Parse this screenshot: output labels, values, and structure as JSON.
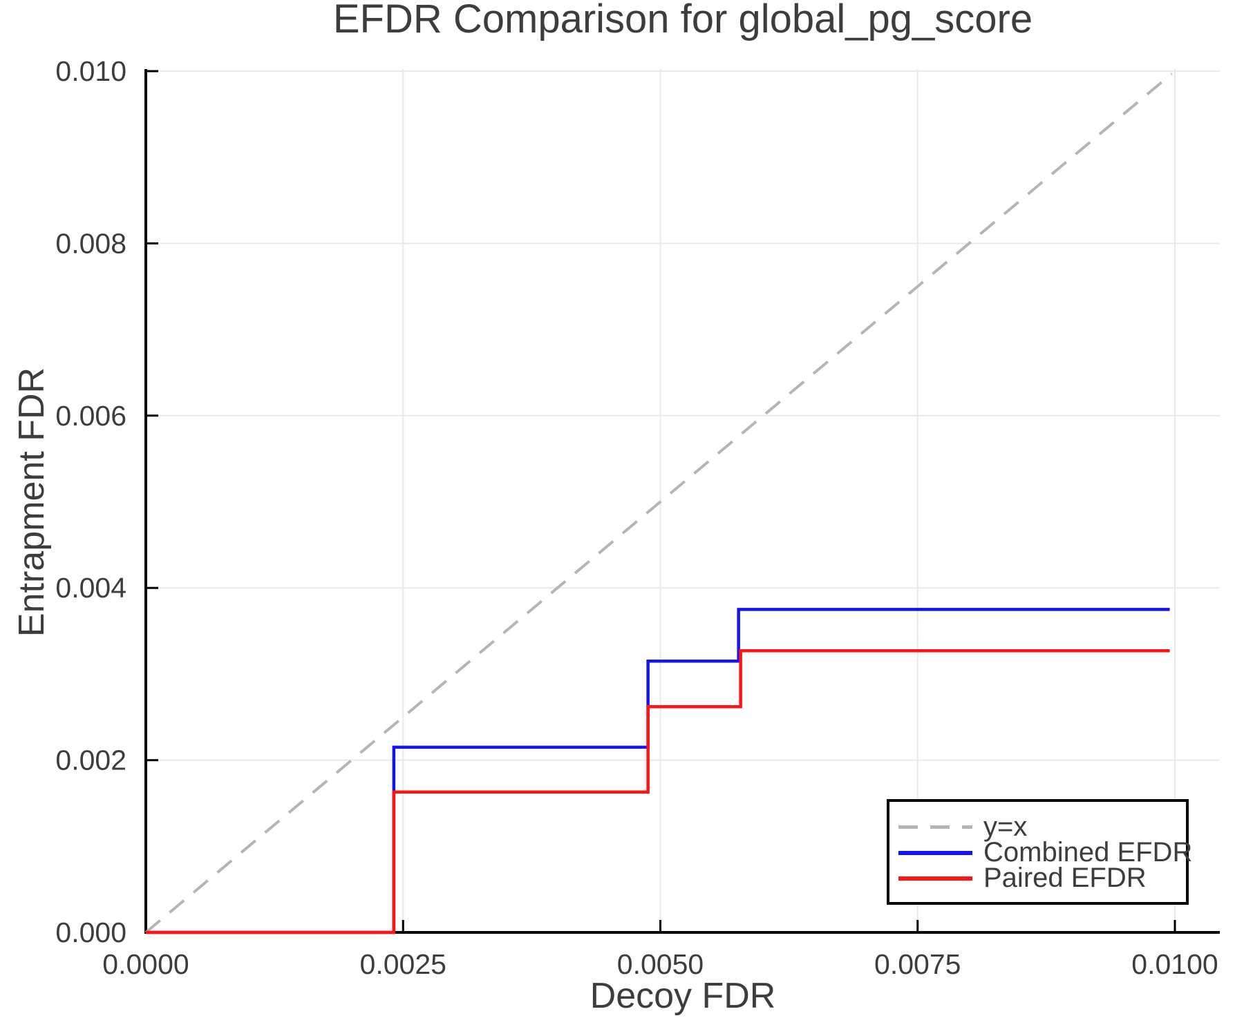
{
  "colors": {
    "combined": "#1414f0",
    "paired": "#ff1414",
    "identity": "#b5b5b5",
    "grid": "#e9e9e9",
    "axis": "#000000",
    "text": "#3d3d3d"
  },
  "chart_data": {
    "type": "line",
    "title": "EFDR Comparison for global_pg_score",
    "xlabel": "Decoy FDR",
    "ylabel": "Entrapment FDR",
    "xlim": [
      0,
      0.01
    ],
    "ylim": [
      0,
      0.01
    ],
    "grid": true,
    "xticks": {
      "values": [
        0,
        0.0025,
        0.005,
        0.0075,
        0.01
      ],
      "labels": [
        "0.0000",
        "0.0025",
        "0.0050",
        "0.0075",
        "0.0100"
      ]
    },
    "yticks": {
      "values": [
        0,
        0.002,
        0.004,
        0.006,
        0.008,
        0.01
      ],
      "labels": [
        "0.000",
        "0.002",
        "0.004",
        "0.006",
        "0.008",
        "0.010"
      ]
    },
    "series": [
      {
        "id": "identity",
        "name": "y=x",
        "style": "dashed",
        "color": "#b5b5b5",
        "width": 4,
        "dash": "27 18",
        "x": [
          0,
          0.00997
        ],
        "y": [
          0,
          0.00997
        ]
      },
      {
        "id": "combined-efdr",
        "name": "Combined EFDR",
        "style": "solid",
        "color": "#1414f0",
        "width": 4.5,
        "x": [
          0,
          0.00241,
          0.00241,
          0.00488,
          0.00488,
          0.00576,
          0.00576,
          0.00995
        ],
        "y": [
          0,
          0,
          0.00215,
          0.00215,
          0.00315,
          0.00315,
          0.00375,
          0.00375
        ]
      },
      {
        "id": "paired-efdr",
        "name": "Paired EFDR",
        "style": "solid",
        "color": "#ff1414",
        "width": 4.5,
        "x": [
          0,
          0.00241,
          0.00241,
          0.00488,
          0.00488,
          0.00578,
          0.00578,
          0.00995
        ],
        "y": [
          0,
          0,
          0.00163,
          0.00163,
          0.00262,
          0.00262,
          0.00327,
          0.00327
        ]
      }
    ],
    "legend": {
      "position": "lower right",
      "entries": [
        {
          "label": "y=x",
          "color": "#b5b5b5",
          "style": "dashed"
        },
        {
          "label": "Combined EFDR",
          "color": "#1414f0",
          "style": "solid"
        },
        {
          "label": "Paired EFDR",
          "color": "#ff1414",
          "style": "solid"
        }
      ]
    }
  }
}
